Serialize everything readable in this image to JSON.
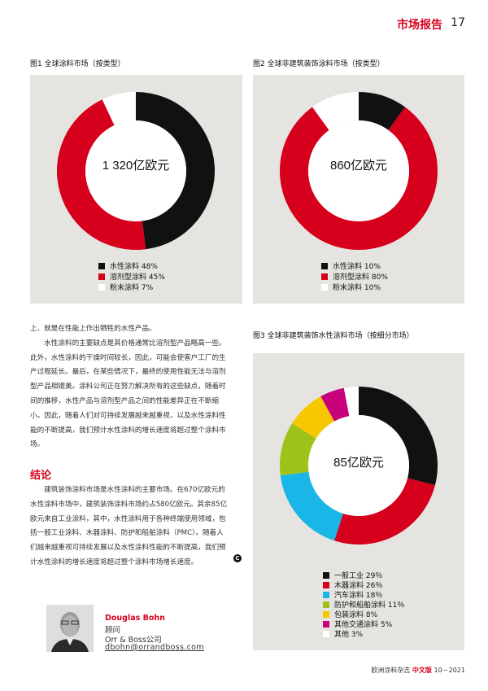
{
  "header": {
    "section": "市场报告",
    "page": "17"
  },
  "fig1": {
    "title": "图1 全球涂料市场（按类型）",
    "center": "1 320亿欧元",
    "colors": [
      "#111111",
      "#d6001c",
      "#ffffff"
    ],
    "legend": [
      "水性涂料 48%",
      "溶剂型涂料 45%",
      "粉末涂料 7%"
    ]
  },
  "fig2": {
    "title": "图2 全球非建筑装饰涂料市场（按类型）",
    "center": "860亿欧元",
    "colors": [
      "#111111",
      "#d6001c",
      "#ffffff"
    ],
    "legend": [
      "水性涂料 10%",
      "溶剂型涂料 80%",
      "粉末涂料 10%"
    ]
  },
  "fig3": {
    "title": "图3 全球非建筑装饰水性涂料市场（按细分市场）",
    "center": "85亿欧元",
    "colors": [
      "#111111",
      "#d6001c",
      "#1ab6e8",
      "#9fc21a",
      "#f7c800",
      "#c8007a",
      "#ffffff"
    ],
    "legend": [
      "一般工业 29％",
      "木器涂料 26％",
      "汽车涂料 18％",
      "防护和船舶涂料 11％",
      "包装涂料 8%",
      "其他交通涂料 5%",
      "其他 3%"
    ]
  },
  "chart_data": [
    {
      "type": "pie",
      "title": "图1 全球涂料市场（按类型）",
      "categories": [
        "水性涂料",
        "溶剂型涂料",
        "粉末涂料"
      ],
      "values": [
        48,
        45,
        7
      ]
    },
    {
      "type": "pie",
      "title": "图2 全球非建筑装饰涂料市场（按类型）",
      "categories": [
        "水性涂料",
        "溶剂型涂料",
        "粉末涂料"
      ],
      "values": [
        10,
        80,
        10
      ]
    },
    {
      "type": "pie",
      "title": "图3 全球非建筑装饰水性涂料市场（按细分市场）",
      "categories": [
        "一般工业",
        "木器涂料",
        "汽车涂料",
        "防护和船舶涂料",
        "包装涂料",
        "其他交通涂料",
        "其他"
      ],
      "values": [
        29,
        26,
        18,
        11,
        8,
        5,
        3
      ]
    }
  ],
  "body": {
    "lines": [
      "上、就是在性能上作出牺牲的水性产品。",
      "　　水性涂料的主要缺点是其价格通常比溶剂型产品略高一些。",
      "此外，水性涂料的干燥时间较长，因此，可能会使客户工厂的生",
      "产过程延长。最后，在某些情况下，最终的使用性能无法与溶剂",
      "型产品相媲美。涂料公司正在努力解决所有的这些缺点，随着时",
      "间的推移，水性产品与溶剂型产品之间的性能差异正在不断缩",
      "小。因此，随着人们对可持续发展越来越重视，以及水性涂料性",
      "能的不断提高，我们预计水性涂料的增长速度将超过整个涂料市",
      "场。"
    ]
  },
  "conclusion": {
    "heading": "结论",
    "lines": [
      "　　建筑装饰涂料市场是水性涂料的主要市场。在670亿欧元的",
      "水性涂料市场中，建筑装饰涂料市场约占580亿欧元。其余85亿",
      "欧元来自工业涂料，其中，水性涂料用于各种终端使用领域，包",
      "括一般工业涂料、木器涂料、防护和船舶涂料（PMC）。随着人",
      "们越来越重视可持续发展以及水性涂料性能的不断提高，我们预",
      "计水性涂料的增长速度将超过整个涂料市场增长速度。"
    ],
    "end_mark": "C"
  },
  "author": {
    "name": "Douglas Bohn",
    "role": "顾问",
    "company": "Orr & Boss公司",
    "email": "dbohn@orrandboss.com"
  },
  "footer": {
    "magazine": "欧洲涂料杂志",
    "edition": "中文版",
    "issue": "10－2021"
  }
}
